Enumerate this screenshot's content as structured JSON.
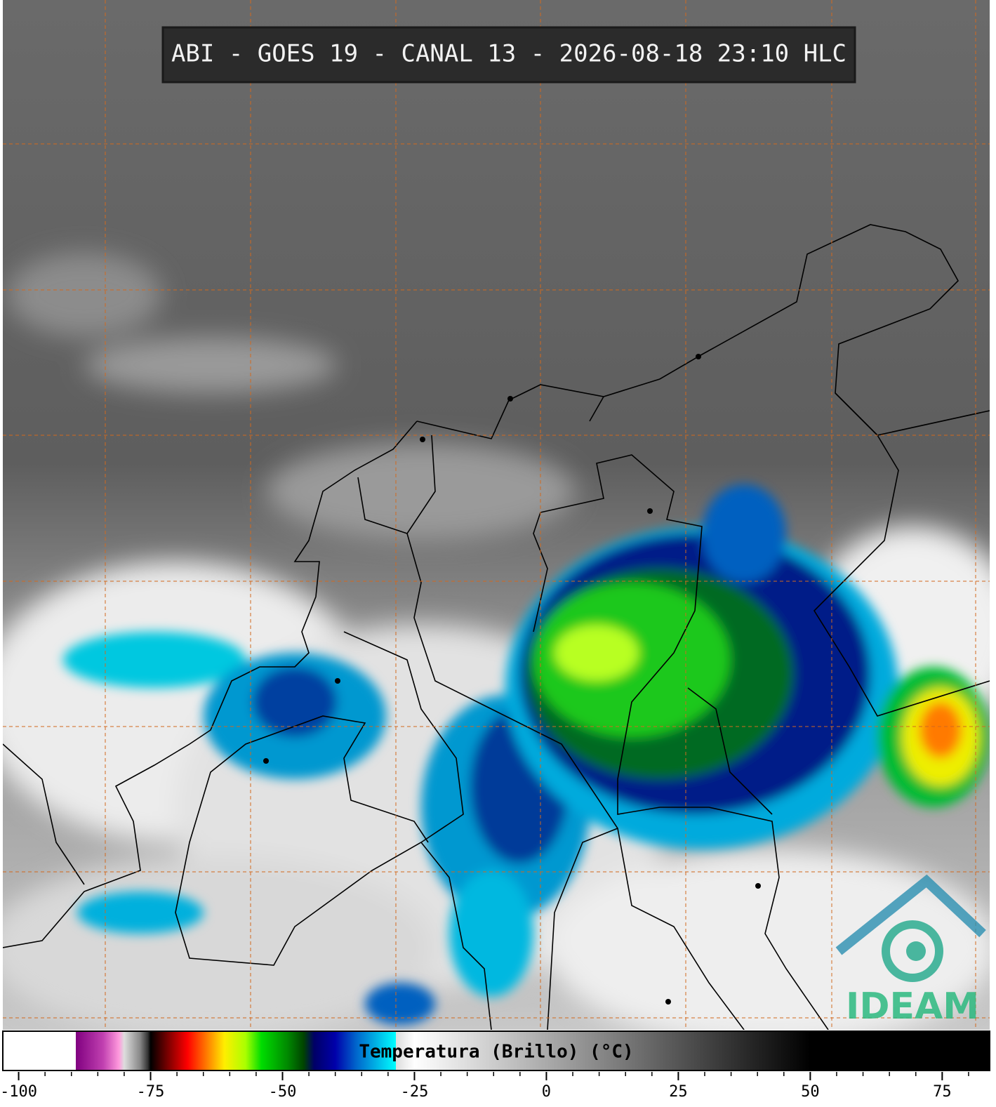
{
  "header": {
    "title": "ABI - GOES 19 - CANAL 13 - 2026-08-18 23:10 HLC"
  },
  "logo": {
    "text": "IDEAM"
  },
  "colorbar": {
    "label": "Temperatura (Brillo) (°C)",
    "xlim": [
      -103,
      84
    ],
    "xticks": [
      -100,
      -75,
      -50,
      -25,
      0,
      25,
      50,
      75
    ],
    "minor_tick_step": 5,
    "colormap": [
      {
        "value": -103,
        "color": "#ffffff"
      },
      {
        "value": -89.2,
        "color": "#ffffff"
      },
      {
        "value": -89.2,
        "color": "#800080"
      },
      {
        "value": -84,
        "color": "#c040b0"
      },
      {
        "value": -81,
        "color": "#ff99dd"
      },
      {
        "value": -80,
        "color": "#dddddd"
      },
      {
        "value": -77,
        "color": "#888888"
      },
      {
        "value": -75.5,
        "color": "#333333"
      },
      {
        "value": -75,
        "color": "#000000"
      },
      {
        "value": -72,
        "color": "#700000"
      },
      {
        "value": -68,
        "color": "#ff0000"
      },
      {
        "value": -64,
        "color": "#ff8800"
      },
      {
        "value": -61,
        "color": "#ffee00"
      },
      {
        "value": -57,
        "color": "#aaff00"
      },
      {
        "value": -54,
        "color": "#00dd00"
      },
      {
        "value": -49,
        "color": "#008800"
      },
      {
        "value": -46,
        "color": "#004400"
      },
      {
        "value": -44,
        "color": "#000066"
      },
      {
        "value": -40,
        "color": "#0000aa"
      },
      {
        "value": -36,
        "color": "#0066cc"
      },
      {
        "value": -31,
        "color": "#00ccee"
      },
      {
        "value": -28.5,
        "color": "#00ffff"
      },
      {
        "value": -28.5,
        "color": "#dddddd"
      },
      {
        "value": -25,
        "color": "#ffffff"
      },
      {
        "value": 50,
        "color": "#000000"
      },
      {
        "value": 84,
        "color": "#000000"
      }
    ]
  }
}
